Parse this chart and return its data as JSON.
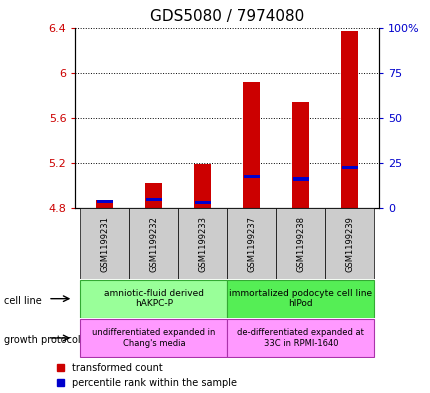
{
  "title": "GDS5080 / 7974080",
  "samples": [
    "GSM1199231",
    "GSM1199232",
    "GSM1199233",
    "GSM1199237",
    "GSM1199238",
    "GSM1199239"
  ],
  "red_values": [
    4.87,
    5.02,
    5.19,
    5.92,
    5.74,
    6.37
  ],
  "blue_values": [
    4.86,
    4.88,
    4.85,
    5.08,
    5.06,
    5.16
  ],
  "red_base": 4.8,
  "ylim_left": [
    4.8,
    6.4
  ],
  "ylim_right": [
    0,
    100
  ],
  "yticks_left": [
    4.8,
    5.2,
    5.6,
    6.0,
    6.4
  ],
  "ytick_labels_left": [
    "4.8",
    "5.2",
    "5.6",
    "6",
    "6.4"
  ],
  "yticks_right": [
    0,
    25,
    50,
    75,
    100
  ],
  "ytick_labels_right": [
    "0",
    "25",
    "50",
    "75",
    "100%"
  ],
  "ylabel_left_color": "#cc0000",
  "ylabel_right_color": "#0000cc",
  "bar_width": 0.35,
  "red_color": "#cc0000",
  "blue_color": "#0000cc",
  "cell_line_label1": "amniotic-fluid derived\nhAKPC-P",
  "cell_line_color1": "#99ff99",
  "cell_line_label2": "immortalized podocyte cell line\nhIPod",
  "cell_line_color2": "#55ee55",
  "growth_label1": "undifferentiated expanded in\nChang's media",
  "growth_label2": "de-differentiated expanded at\n33C in RPMI-1640",
  "growth_color": "#ff99ff",
  "legend_red_label": "transformed count",
  "legend_blue_label": "percentile rank within the sample",
  "cell_line_label": "cell line",
  "growth_protocol_label": "growth protocol",
  "tick_label_fontsize": 8,
  "title_fontsize": 11,
  "sample_fontsize": 6,
  "annot_fontsize": 6.5,
  "legend_fontsize": 7
}
